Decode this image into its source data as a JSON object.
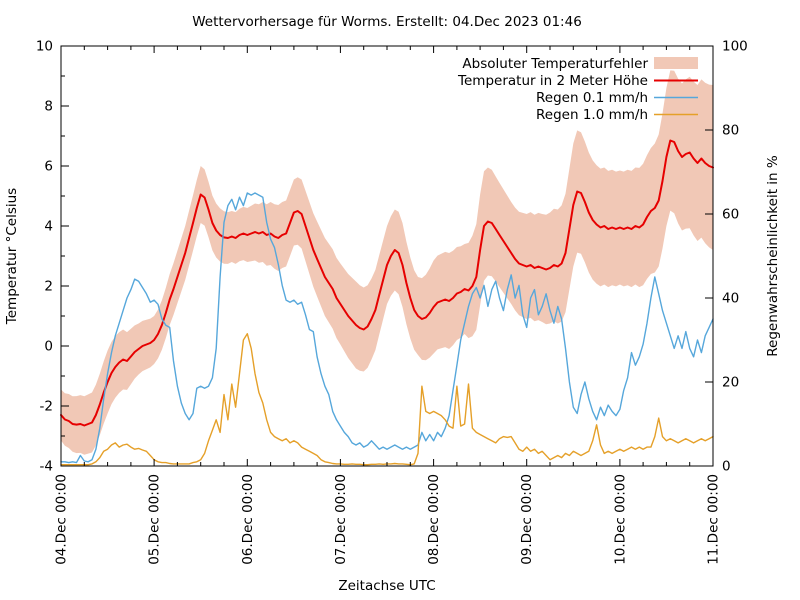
{
  "chart_data": {
    "type": "line",
    "title": "Wettervorhersage für Worms. Erstellt: 04.Dec 2023 01:46",
    "xlabel": "Zeitachse UTC",
    "ylabel_left": "Temperatur °Celsius",
    "ylabel_right": "Regenwahrscheinlichkeit in %",
    "x_range_hours": [
      0,
      168
    ],
    "x_major_tick_hours": 24,
    "x_minor_tick_hours": 6,
    "x_tick_labels": [
      "04.Dec 00:00",
      "05.Dec 00:00",
      "06.Dec 00:00",
      "07.Dec 00:00",
      "08.Dec 00:00",
      "09.Dec 00:00",
      "10.Dec 00:00",
      "11.Dec 00:00"
    ],
    "y_left_range": [
      -4,
      10
    ],
    "y_left_ticks": [
      -4,
      -2,
      0,
      2,
      4,
      6,
      8,
      10
    ],
    "y_left_minor_step": 1,
    "y_right_range": [
      0,
      100
    ],
    "y_right_ticks": [
      0,
      20,
      40,
      60,
      80,
      100
    ],
    "grid": false,
    "legend_position": "top-right-inside",
    "legend": [
      {
        "label": "Absoluter Temperaturfehler",
        "type": "band",
        "color": "#f1c8b6"
      },
      {
        "label": "Temperatur in 2 Meter Höhe",
        "type": "line",
        "color": "#e60000",
        "width": 2
      },
      {
        "label": "Regen 0.1 mm/h",
        "type": "line",
        "color": "#56a7db",
        "width": 1.4
      },
      {
        "label": "Regen 1.0 mm/h",
        "type": "line",
        "color": "#e5a029",
        "width": 1.4
      }
    ],
    "series": {
      "hours_step": 1,
      "temperature_c": [
        -2.3,
        -2.45,
        -2.5,
        -2.6,
        -2.62,
        -2.6,
        -2.65,
        -2.6,
        -2.55,
        -2.3,
        -1.95,
        -1.55,
        -1.2,
        -0.9,
        -0.7,
        -0.55,
        -0.45,
        -0.5,
        -0.35,
        -0.2,
        -0.1,
        0.0,
        0.05,
        0.1,
        0.2,
        0.4,
        0.7,
        1.1,
        1.55,
        1.9,
        2.3,
        2.7,
        3.1,
        3.6,
        4.1,
        4.6,
        5.05,
        4.95,
        4.55,
        4.1,
        3.85,
        3.7,
        3.62,
        3.6,
        3.65,
        3.6,
        3.7,
        3.75,
        3.7,
        3.75,
        3.8,
        3.75,
        3.8,
        3.7,
        3.75,
        3.65,
        3.6,
        3.7,
        3.75,
        4.1,
        4.45,
        4.5,
        4.4,
        4.0,
        3.6,
        3.2,
        2.9,
        2.6,
        2.3,
        2.1,
        1.9,
        1.6,
        1.4,
        1.2,
        1.0,
        0.85,
        0.7,
        0.6,
        0.55,
        0.65,
        0.9,
        1.2,
        1.7,
        2.2,
        2.7,
        3.0,
        3.2,
        3.1,
        2.7,
        2.1,
        1.6,
        1.2,
        1.0,
        0.9,
        0.95,
        1.1,
        1.3,
        1.45,
        1.5,
        1.55,
        1.5,
        1.6,
        1.75,
        1.8,
        1.9,
        1.85,
        2.0,
        2.3,
        3.2,
        4.0,
        4.15,
        4.1,
        3.9,
        3.7,
        3.5,
        3.3,
        3.1,
        2.9,
        2.75,
        2.7,
        2.65,
        2.7,
        2.6,
        2.65,
        2.6,
        2.55,
        2.6,
        2.7,
        2.65,
        2.75,
        3.1,
        3.9,
        4.7,
        5.15,
        5.1,
        4.8,
        4.45,
        4.2,
        4.05,
        3.95,
        4.0,
        3.9,
        3.95,
        3.9,
        3.95,
        3.9,
        3.95,
        3.9,
        4.0,
        3.95,
        4.05,
        4.3,
        4.5,
        4.6,
        4.85,
        5.5,
        6.3,
        6.85,
        6.8,
        6.5,
        6.3,
        6.4,
        6.45,
        6.25,
        6.1,
        6.25,
        6.1,
        6.0,
        5.95
      ],
      "temperature_error_c_step4": [
        0.85,
        0.95,
        1.0,
        1.05,
        1.0,
        0.85,
        0.8,
        0.85,
        0.9,
        0.95,
        0.9,
        0.85,
        0.9,
        1.0,
        1.1,
        1.1,
        1.2,
        1.3,
        1.35,
        1.45,
        1.35,
        1.3,
        1.4,
        1.3,
        1.55,
        1.6,
        1.5,
        1.85,
        1.75,
        1.7,
        1.75,
        1.8,
        1.9,
        2.05,
        2.0,
        1.95,
        1.9,
        1.95,
        2.1,
        2.3,
        2.45,
        2.6,
        2.75
      ],
      "rain_01_percent": [
        1,
        1,
        0.8,
        1,
        0.8,
        2.5,
        1.2,
        1,
        1.5,
        4,
        9,
        16,
        22,
        27,
        31,
        34,
        37,
        40,
        42,
        44.5,
        44,
        42.5,
        41,
        39,
        39.5,
        38.5,
        35,
        33.5,
        33,
        25,
        19,
        15,
        12.5,
        11,
        12.5,
        18.5,
        19,
        18.5,
        19,
        21,
        28,
        45,
        58,
        62,
        63.5,
        61,
        64,
        62,
        65,
        64.5,
        65,
        64.5,
        64,
        58,
        54,
        52,
        48,
        43,
        39.5,
        39,
        39.5,
        38.5,
        39,
        36,
        32.5,
        32,
        26,
        22,
        19,
        17,
        13,
        11,
        9.5,
        8,
        7,
        5.5,
        5,
        5.5,
        4.5,
        5,
        6,
        5,
        4,
        4.5,
        4,
        4.5,
        5,
        4.5,
        4,
        4.5,
        4,
        4.5,
        5,
        8,
        6,
        7.5,
        6,
        8,
        7,
        9,
        12,
        18,
        24,
        30,
        34,
        38,
        41,
        42.5,
        40,
        43,
        38,
        42,
        44,
        40,
        37,
        42,
        45.5,
        40,
        43,
        36,
        33,
        40,
        42,
        36,
        38,
        41,
        37,
        34,
        38,
        35,
        28,
        20,
        14,
        12.5,
        17,
        20,
        16,
        13,
        11,
        14,
        12,
        14.5,
        13,
        12,
        13.5,
        18,
        21,
        27,
        24,
        26,
        29,
        34,
        40,
        45,
        41,
        37,
        34,
        31,
        28,
        31,
        28,
        32,
        28,
        26,
        30,
        27,
        31,
        33,
        35
      ],
      "rain_10_percent": [
        0.3,
        0.3,
        0.3,
        0.3,
        0.3,
        0.3,
        0.3,
        0.3,
        0.5,
        1,
        2,
        3.5,
        4,
        5,
        5.5,
        4.5,
        5,
        5.2,
        4.5,
        4,
        4.2,
        3.8,
        3.5,
        2.5,
        1.5,
        1,
        0.8,
        0.8,
        0.6,
        0.5,
        0.5,
        0.5,
        0.5,
        0.5,
        0.8,
        1,
        1.5,
        3,
        6,
        8.5,
        11,
        8,
        17,
        11,
        19.5,
        14,
        22,
        30,
        31.5,
        28,
        22,
        17.5,
        15,
        11,
        8,
        7,
        6.5,
        6,
        6.5,
        5.5,
        6,
        5.5,
        4.5,
        4,
        3.5,
        3,
        2.5,
        1.5,
        1,
        0.8,
        0.6,
        0.5,
        0.5,
        0.4,
        0.4,
        0.5,
        0.4,
        0.4,
        0.3,
        0.3,
        0.4,
        0.4,
        0.5,
        0.4,
        0.5,
        0.5,
        0.6,
        0.5,
        0.5,
        0.4,
        0.3,
        0.5,
        3,
        19,
        13,
        12.5,
        13,
        12.5,
        12,
        11,
        9.5,
        9,
        19,
        9.5,
        10,
        19.5,
        9,
        8,
        7.5,
        7,
        6.5,
        6,
        5.5,
        6.5,
        7,
        6.8,
        7,
        5.5,
        4,
        3.5,
        4.5,
        3.5,
        4,
        3,
        3.5,
        2.5,
        1.5,
        2,
        2.5,
        2,
        3,
        2.5,
        3.5,
        3,
        2.5,
        3,
        3.5,
        6,
        9.8,
        5,
        3,
        3.5,
        3,
        3.5,
        4,
        3.5,
        4,
        4.5,
        4,
        4.5,
        4,
        4.5,
        4.5,
        7,
        11.4,
        7,
        6,
        6.5,
        6,
        5.5,
        6,
        6.5,
        6,
        5.5,
        6,
        6.5,
        6,
        6.5,
        7
      ]
    },
    "colors": {
      "background": "#ffffff",
      "axis": "#000000",
      "text": "#000000",
      "error_band": "#f1c8b6",
      "temperature": "#e60000",
      "rain_01": "#56a7db",
      "rain_10": "#e5a029"
    }
  }
}
